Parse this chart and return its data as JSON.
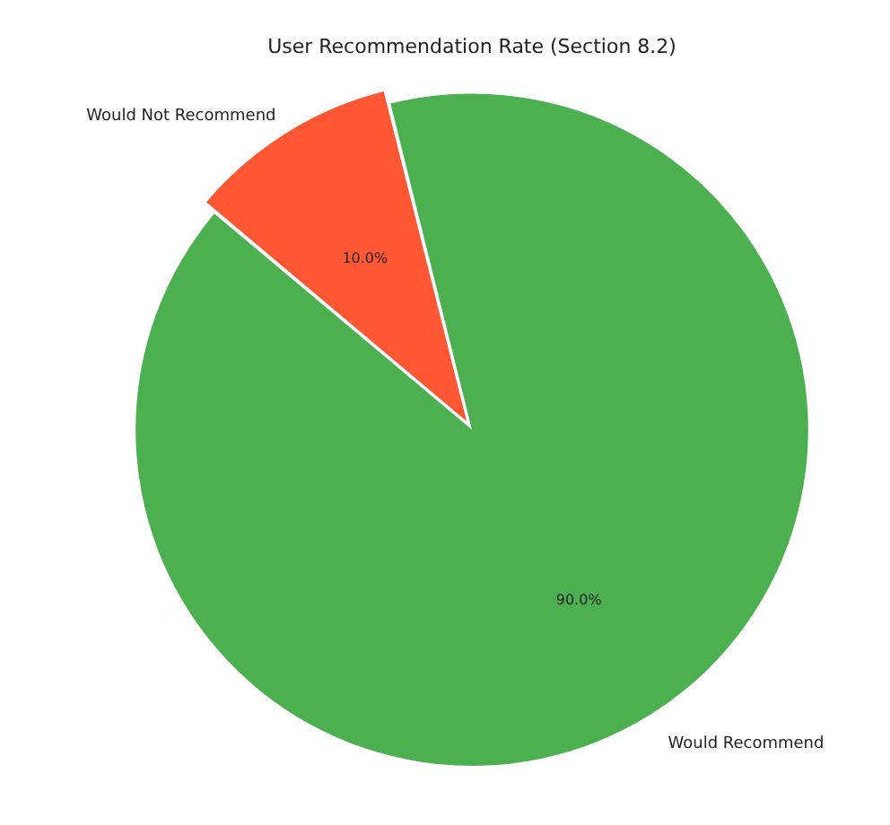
{
  "chart_data": {
    "type": "pie",
    "title": "User Recommendation Rate (Section 8.2)",
    "categories": [
      "Would Recommend",
      "Would Not Recommend"
    ],
    "values": [
      90,
      10
    ],
    "colors": [
      "#4caf50",
      "#ff5733"
    ],
    "value_labels": [
      "90.0%",
      "10.0%"
    ],
    "legend": false
  }
}
